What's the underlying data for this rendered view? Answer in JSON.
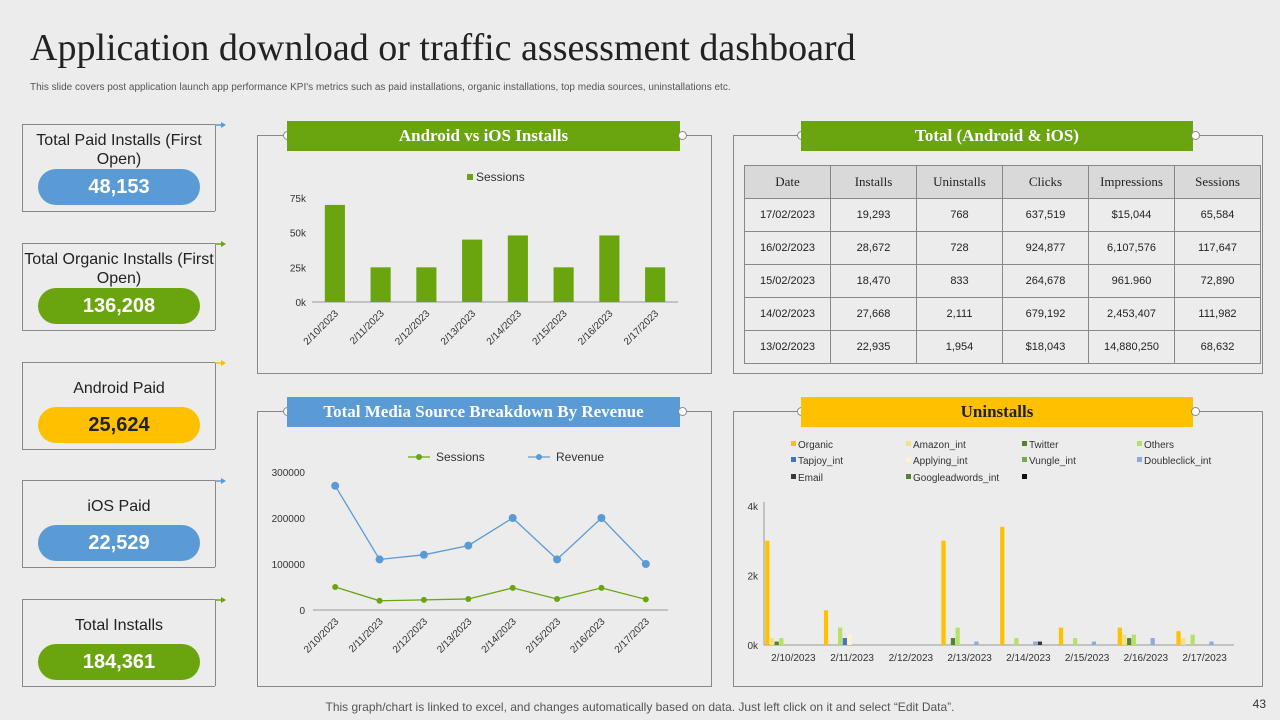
{
  "title": "Application download or traffic assessment dashboard",
  "subtitle": "This slide covers post application launch app performance KPI's metrics such as paid installations, organic installations, top media sources, uninstallations etc.",
  "kpis": [
    {
      "label": "Total Paid Installs (First Open)",
      "value": "48,153",
      "color": "#5b9bd5"
    },
    {
      "label": "Total Organic Installs (First Open)",
      "value": "136,208",
      "color": "#6aa510"
    },
    {
      "label": "Android Paid",
      "value": "25,624",
      "color": "#ffc000"
    },
    {
      "label": "iOS Paid",
      "value": "22,529",
      "color": "#5b9bd5"
    },
    {
      "label": "Total Installs",
      "value": "184,361",
      "color": "#6aa510"
    }
  ],
  "panels": {
    "installs_title": "Android vs iOS Installs",
    "total_title": "Total (Android & iOS)",
    "media_title": "Total Media Source Breakdown By Revenue",
    "uninstalls_title": "Uninstalls"
  },
  "colors": {
    "green": "#6aa510",
    "blue": "#5b9bd5",
    "yellow": "#ffc000"
  },
  "table": {
    "headers": [
      "Date",
      "Installs",
      "Uninstalls",
      "Clicks",
      "Impressions",
      "Sessions"
    ],
    "rows": [
      [
        "17/02/2023",
        "19,293",
        "768",
        "637,519",
        "$15,044",
        "65,584"
      ],
      [
        "16/02/2023",
        "28,672",
        "728",
        "924,877",
        "6,107,576",
        "117,647"
      ],
      [
        "15/02/2023",
        "18,470",
        "833",
        "264,678",
        "961.960",
        "72,890"
      ],
      [
        "14/02/2023",
        "27,668",
        "2,111",
        "679,192",
        "2,453,407",
        "111,982"
      ],
      [
        "13/02/2023",
        "22,935",
        "1,954",
        "$18,043",
        "14,880,250",
        "68,632"
      ]
    ]
  },
  "chart_data": [
    {
      "type": "bar",
      "categories": [
        "2/10/2023",
        "2/11/2023",
        "2/12/2023",
        "2/13/2023",
        "2/14/2023",
        "2/15/2023",
        "2/16/2023",
        "2/17/2023"
      ],
      "series": [
        {
          "name": "Sessions",
          "values": [
            70000,
            25000,
            25000,
            45000,
            48000,
            25000,
            48000,
            25000
          ],
          "color": "#6aa510"
        }
      ],
      "yticks": [
        "0k",
        "25k",
        "50k",
        "75k"
      ],
      "ylim": [
        0,
        75000
      ],
      "legend": "top"
    },
    {
      "type": "line",
      "categories": [
        "2/10/2023",
        "2/11/2023",
        "2/12/2023",
        "2/13/2023",
        "2/14/2023",
        "2/15/2023",
        "2/16/2023",
        "2/17/2023"
      ],
      "series": [
        {
          "name": "Sessions",
          "values": [
            50000,
            20000,
            22000,
            24000,
            48000,
            24000,
            48000,
            23000
          ],
          "color": "#6aa510"
        },
        {
          "name": "Revenue",
          "values": [
            270000,
            110000,
            120000,
            140000,
            200000,
            110000,
            200000,
            100000
          ],
          "color": "#5b9bd5"
        }
      ],
      "yticks": [
        "0",
        "100000",
        "200000",
        "300000"
      ],
      "ylim": [
        0,
        300000
      ],
      "legend": "top"
    },
    {
      "type": "bar",
      "categories": [
        "2/10/2023",
        "2/11/2023",
        "2/12/2023",
        "2/13/2023",
        "2/14/2023",
        "2/15/2023",
        "2/16/2023",
        "2/17/2023"
      ],
      "series": [
        {
          "name": "Organic",
          "color": "#ffc000",
          "values": [
            3000,
            1000,
            0,
            3000,
            3400,
            500,
            500,
            400
          ]
        },
        {
          "name": "Amazon_int",
          "color": "#f5df8a",
          "values": [
            200,
            0,
            0,
            0,
            0,
            0,
            300,
            200
          ]
        },
        {
          "name": "Twitter",
          "color": "#548235",
          "values": [
            100,
            0,
            0,
            200,
            0,
            0,
            200,
            0
          ]
        },
        {
          "name": "Others",
          "color": "#b5e06a",
          "values": [
            200,
            500,
            0,
            500,
            200,
            200,
            300,
            300
          ]
        },
        {
          "name": "Tapjoy_int",
          "color": "#4472c4",
          "values": [
            0,
            200,
            0,
            0,
            0,
            0,
            0,
            0
          ]
        },
        {
          "name": "Applying_int",
          "color": "#fff2cc",
          "values": [
            0,
            300,
            0,
            0,
            0,
            0,
            0,
            0
          ]
        },
        {
          "name": "Vungle_int",
          "color": "#70ad47",
          "values": [
            0,
            0,
            0,
            0,
            0,
            0,
            0,
            0
          ]
        },
        {
          "name": "Doubleclick_int",
          "color": "#8faadc",
          "values": [
            0,
            0,
            0,
            100,
            100,
            100,
            200,
            100
          ]
        },
        {
          "name": "Email",
          "color": "#3b3838",
          "values": [
            0,
            0,
            0,
            0,
            100,
            0,
            0,
            0
          ]
        },
        {
          "name": "Googleadwords_int",
          "color": "#548235",
          "values": [
            0,
            0,
            0,
            0,
            0,
            0,
            0,
            0
          ]
        }
      ],
      "yticks": [
        "0k",
        "2k",
        "4k"
      ],
      "ylim": [
        0,
        4000
      ],
      "legend": "top"
    }
  ],
  "footer": "This graph/chart is linked to excel, and changes automatically based on data. Just left click on it and select “Edit Data”.",
  "page_number": "43"
}
